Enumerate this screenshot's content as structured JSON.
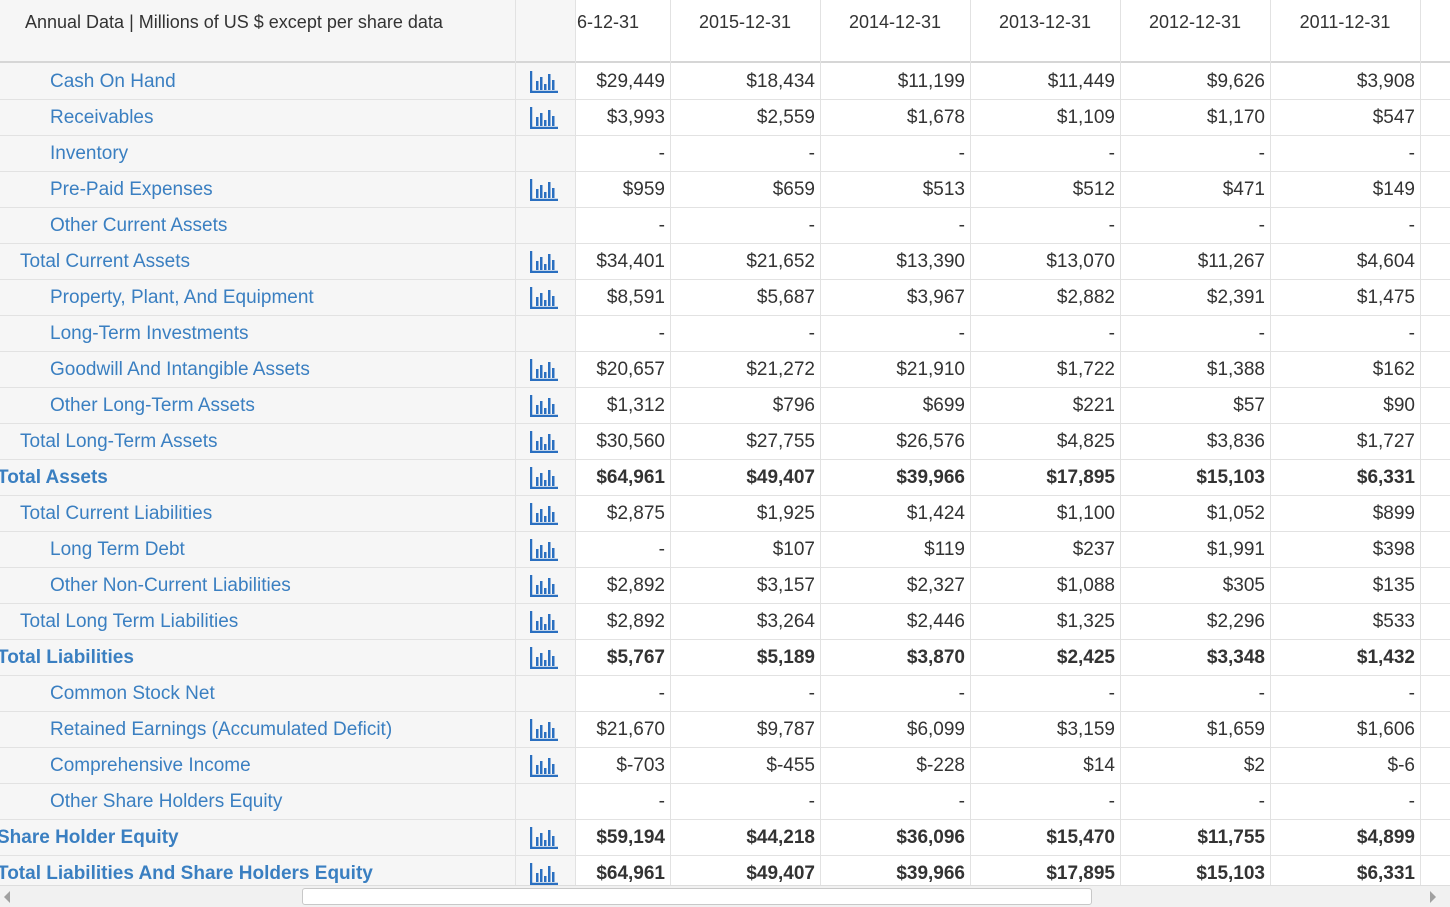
{
  "table": {
    "header": {
      "corner": "Annual Data | Millions of US $ except per share data",
      "columns": [
        "6-12-31",
        "2015-12-31",
        "2014-12-31",
        "2013-12-31",
        "2012-12-31",
        "2011-12-31"
      ]
    },
    "rows": [
      {
        "label": "Cash On Hand",
        "values": [
          "$29,449",
          "$18,434",
          "$11,199",
          "$11,449",
          "$9,626",
          "$3,908"
        ]
      },
      {
        "label": "Receivables",
        "values": [
          "$3,993",
          "$2,559",
          "$1,678",
          "$1,109",
          "$1,170",
          "$547"
        ]
      },
      {
        "label": "Inventory",
        "values": [
          "-",
          "-",
          "-",
          "-",
          "-",
          "-"
        ]
      },
      {
        "label": "Pre-Paid Expenses",
        "values": [
          "$959",
          "$659",
          "$513",
          "$512",
          "$471",
          "$149"
        ]
      },
      {
        "label": "Other Current Assets",
        "values": [
          "-",
          "-",
          "-",
          "-",
          "-",
          "-"
        ]
      },
      {
        "label": "Total Current Assets",
        "values": [
          "$34,401",
          "$21,652",
          "$13,390",
          "$13,070",
          "$11,267",
          "$4,604"
        ]
      },
      {
        "label": "Property, Plant, And Equipment",
        "values": [
          "$8,591",
          "$5,687",
          "$3,967",
          "$2,882",
          "$2,391",
          "$1,475"
        ]
      },
      {
        "label": "Long-Term Investments",
        "values": [
          "-",
          "-",
          "-",
          "-",
          "-",
          "-"
        ]
      },
      {
        "label": "Goodwill And Intangible Assets",
        "values": [
          "$20,657",
          "$21,272",
          "$21,910",
          "$1,722",
          "$1,388",
          "$162"
        ]
      },
      {
        "label": "Other Long-Term Assets",
        "values": [
          "$1,312",
          "$796",
          "$699",
          "$221",
          "$57",
          "$90"
        ]
      },
      {
        "label": "Total Long-Term Assets",
        "values": [
          "$30,560",
          "$27,755",
          "$26,576",
          "$4,825",
          "$3,836",
          "$1,727"
        ]
      },
      {
        "label": "Total Assets",
        "values": [
          "$64,961",
          "$49,407",
          "$39,966",
          "$17,895",
          "$15,103",
          "$6,331"
        ]
      },
      {
        "label": "Total Current Liabilities",
        "values": [
          "$2,875",
          "$1,925",
          "$1,424",
          "$1,100",
          "$1,052",
          "$899"
        ]
      },
      {
        "label": "Long Term Debt",
        "values": [
          "-",
          "$107",
          "$119",
          "$237",
          "$1,991",
          "$398"
        ]
      },
      {
        "label": "Other Non-Current Liabilities",
        "values": [
          "$2,892",
          "$3,157",
          "$2,327",
          "$1,088",
          "$305",
          "$135"
        ]
      },
      {
        "label": "Total Long Term Liabilities",
        "values": [
          "$2,892",
          "$3,264",
          "$2,446",
          "$1,325",
          "$2,296",
          "$533"
        ]
      },
      {
        "label": "Total Liabilities",
        "values": [
          "$5,767",
          "$5,189",
          "$3,870",
          "$2,425",
          "$3,348",
          "$1,432"
        ]
      },
      {
        "label": "Common Stock Net",
        "values": [
          "-",
          "-",
          "-",
          "-",
          "-",
          "-"
        ]
      },
      {
        "label": "Retained Earnings (Accumulated Deficit)",
        "values": [
          "$21,670",
          "$9,787",
          "$6,099",
          "$3,159",
          "$1,659",
          "$1,606"
        ]
      },
      {
        "label": "Comprehensive Income",
        "values": [
          "$-703",
          "$-455",
          "$-228",
          "$14",
          "$2",
          "$-6"
        ]
      },
      {
        "label": "Other Share Holders Equity",
        "values": [
          "-",
          "-",
          "-",
          "-",
          "-",
          "-"
        ]
      },
      {
        "label": "Share Holder Equity",
        "values": [
          "$59,194",
          "$44,218",
          "$36,096",
          "$15,470",
          "$11,755",
          "$4,899"
        ]
      },
      {
        "label": "Total Liabilities And Share Holders Equity",
        "values": [
          "$64,961",
          "$49,407",
          "$39,966",
          "$17,895",
          "$15,103",
          "$6,331"
        ]
      }
    ]
  }
}
